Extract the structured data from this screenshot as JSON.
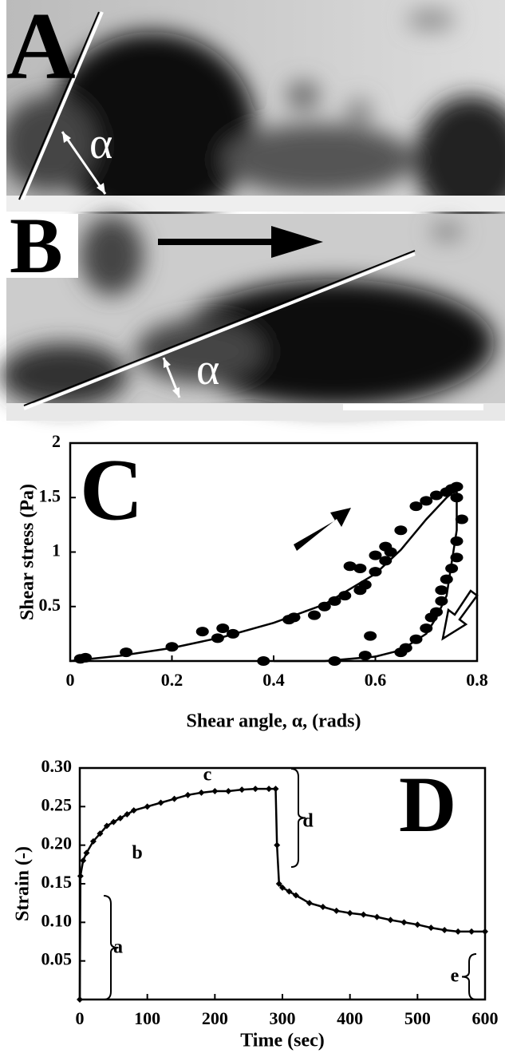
{
  "photo_panels": [
    {
      "label": "A",
      "angle_label": "α"
    },
    {
      "label": "B",
      "angle_label": "α"
    }
  ],
  "chart_data": [
    {
      "type": "scatter",
      "panel_label": "C",
      "x_label": "Shear angle, α, (rads)",
      "y_label": "Shear stress (Pa)",
      "xlim": [
        0,
        0.8
      ],
      "xticks": [
        0,
        0.2,
        0.4,
        0.6,
        0.8
      ],
      "ylim": [
        0,
        2
      ],
      "yticks": [
        0.5,
        1,
        1.5,
        2
      ],
      "color": "#000000",
      "x": [
        0.02,
        0.03,
        0.11,
        0.2,
        0.26,
        0.29,
        0.3,
        0.32,
        0.43,
        0.44,
        0.48,
        0.5,
        0.52,
        0.54,
        0.57,
        0.58,
        0.6,
        0.62,
        0.55,
        0.57,
        0.6,
        0.63,
        0.62,
        0.65,
        0.68,
        0.7,
        0.72,
        0.74,
        0.75,
        0.76,
        0.76,
        0.77,
        0.76,
        0.76,
        0.75,
        0.74,
        0.73,
        0.73,
        0.72,
        0.71,
        0.7,
        0.68,
        0.66,
        0.65,
        0.59,
        0.58,
        0.52,
        0.38
      ],
      "values": [
        0.02,
        0.03,
        0.08,
        0.13,
        0.27,
        0.21,
        0.3,
        0.25,
        0.38,
        0.4,
        0.42,
        0.5,
        0.55,
        0.6,
        0.65,
        0.7,
        0.82,
        0.92,
        0.87,
        0.85,
        0.97,
        1.0,
        1.05,
        1.2,
        1.42,
        1.47,
        1.52,
        1.55,
        1.58,
        1.6,
        1.5,
        1.3,
        1.1,
        0.95,
        0.85,
        0.75,
        0.65,
        0.55,
        0.45,
        0.4,
        0.3,
        0.2,
        0.12,
        0.08,
        0.23,
        0.05,
        0.0,
        0.0
      ],
      "fit_curves": [
        {
          "x": [
            0,
            0.1,
            0.2,
            0.3,
            0.4,
            0.5,
            0.6,
            0.65,
            0.7,
            0.74,
            0.76
          ],
          "y": [
            0,
            0.05,
            0.12,
            0.22,
            0.35,
            0.52,
            0.8,
            1.02,
            1.3,
            1.5,
            1.58
          ]
        },
        {
          "x": [
            0.76,
            0.76,
            0.75,
            0.74,
            0.72,
            0.7,
            0.65,
            0.6,
            0.5,
            0.4
          ],
          "y": [
            1.58,
            1.2,
            0.9,
            0.6,
            0.4,
            0.25,
            0.1,
            0.04,
            0.0,
            0.0
          ]
        }
      ]
    },
    {
      "type": "line",
      "panel_label": "D",
      "x_label": "Time (sec)",
      "y_label": "Strain (-)",
      "xlim": [
        0,
        600
      ],
      "xticks": [
        0,
        100,
        200,
        300,
        400,
        500,
        600
      ],
      "ylim": [
        0,
        0.3
      ],
      "yticks": [
        0.05,
        {
          "value": 0.1,
          "label": "0.10"
        },
        0.15,
        {
          "value": 0.2,
          "label": "0.20"
        },
        0.25,
        {
          "value": 0.3,
          "label": "0.30"
        }
      ],
      "color": "#000000",
      "x": [
        0,
        1,
        5,
        10,
        20,
        30,
        40,
        50,
        60,
        70,
        80,
        100,
        120,
        140,
        160,
        180,
        200,
        220,
        240,
        260,
        280,
        290,
        292,
        295,
        300,
        310,
        320,
        340,
        360,
        380,
        400,
        420,
        440,
        460,
        480,
        500,
        520,
        540,
        560,
        580,
        600
      ],
      "values": [
        0,
        0.16,
        0.18,
        0.19,
        0.205,
        0.215,
        0.225,
        0.23,
        0.235,
        0.24,
        0.245,
        0.25,
        0.255,
        0.26,
        0.265,
        0.268,
        0.27,
        0.27,
        0.272,
        0.273,
        0.273,
        0.273,
        0.2,
        0.15,
        0.145,
        0.14,
        0.135,
        0.125,
        0.12,
        0.115,
        0.112,
        0.11,
        0.107,
        0.103,
        0.1,
        0.097,
        0.093,
        0.09,
        0.088,
        0.088,
        0.088
      ],
      "annotations": [
        "a",
        "b",
        "c",
        "d",
        "e"
      ]
    }
  ]
}
